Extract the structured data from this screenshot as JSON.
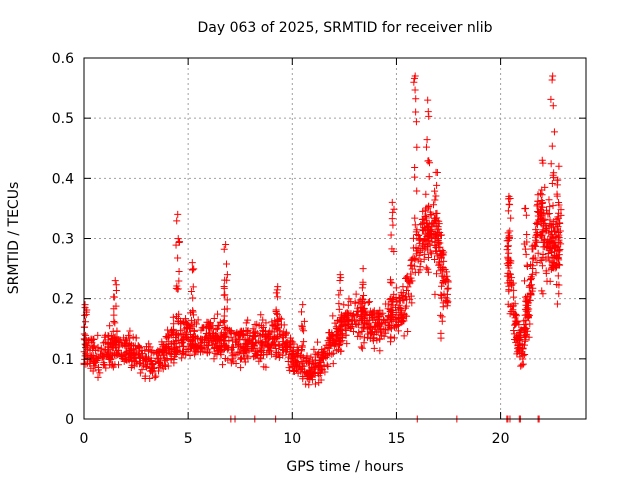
{
  "chart_data": {
    "type": "scatter",
    "title": "Day 063 of 2025, SRMTID for receiver nlib",
    "xlabel": "GPS time / hours",
    "ylabel": "SRMTID / TECUs",
    "xlim": [
      0,
      24.1
    ],
    "ylim": [
      0,
      0.6
    ],
    "xticks": [
      0,
      5,
      10,
      15,
      20
    ],
    "yticks": [
      0,
      0.1,
      0.2,
      0.3,
      0.4,
      0.5,
      0.6
    ],
    "xtick_labels": [
      "0",
      "5",
      "10",
      "15",
      "20"
    ],
    "ytick_labels": [
      "0",
      "0.1",
      "0.2",
      "0.3",
      "0.4",
      "0.5",
      "0.6"
    ],
    "grid": true,
    "marker": "+",
    "series": [
      {
        "name": "SRMTID",
        "color": "#ff0000",
        "profile": {
          "x": [
            0,
            0.5,
            1,
            2,
            3,
            3.5,
            4,
            4.5,
            5,
            5.5,
            6,
            6.5,
            7,
            7.5,
            8,
            8.5,
            9,
            9.5,
            10,
            10.5,
            11,
            11.5,
            12,
            12.5,
            13,
            13.5,
            14,
            14.5,
            15,
            15.5,
            16,
            16.5,
            17,
            17.5
          ],
          "y": [
            0.13,
            0.1,
            0.11,
            0.12,
            0.1,
            0.09,
            0.12,
            0.13,
            0.13,
            0.13,
            0.14,
            0.13,
            0.12,
            0.12,
            0.12,
            0.13,
            0.13,
            0.14,
            0.1,
            0.08,
            0.08,
            0.1,
            0.13,
            0.16,
            0.18,
            0.17,
            0.15,
            0.16,
            0.17,
            0.2,
            0.28,
            0.32,
            0.3,
            0.2
          ]
        },
        "profile2": {
          "x": [
            20.3,
            20.5,
            20.8,
            21.0,
            21.4,
            21.8,
            22.2,
            22.6,
            22.9
          ],
          "y": [
            0.27,
            0.22,
            0.13,
            0.12,
            0.2,
            0.33,
            0.3,
            0.29,
            0.31
          ]
        },
        "peaks": [
          [
            0.05,
            0.19
          ],
          [
            1.5,
            0.23
          ],
          [
            4.5,
            0.34
          ],
          [
            5.2,
            0.26
          ],
          [
            6.8,
            0.29
          ],
          [
            9.3,
            0.22
          ],
          [
            10.5,
            0.19
          ],
          [
            12.3,
            0.24
          ],
          [
            13.4,
            0.25
          ],
          [
            14.8,
            0.36
          ],
          [
            15.9,
            0.57
          ],
          [
            16.5,
            0.53
          ],
          [
            16.9,
            0.41
          ],
          [
            17.2,
            0.28
          ],
          [
            20.4,
            0.37
          ],
          [
            21.2,
            0.35
          ],
          [
            22.0,
            0.43
          ],
          [
            22.5,
            0.57
          ],
          [
            22.8,
            0.42
          ]
        ],
        "zero_points": [
          7.05,
          7.25,
          8.2,
          9.2,
          16.0,
          17.9,
          20.3,
          20.35,
          20.45,
          20.9,
          20.95,
          21.8,
          21.85
        ]
      }
    ]
  }
}
